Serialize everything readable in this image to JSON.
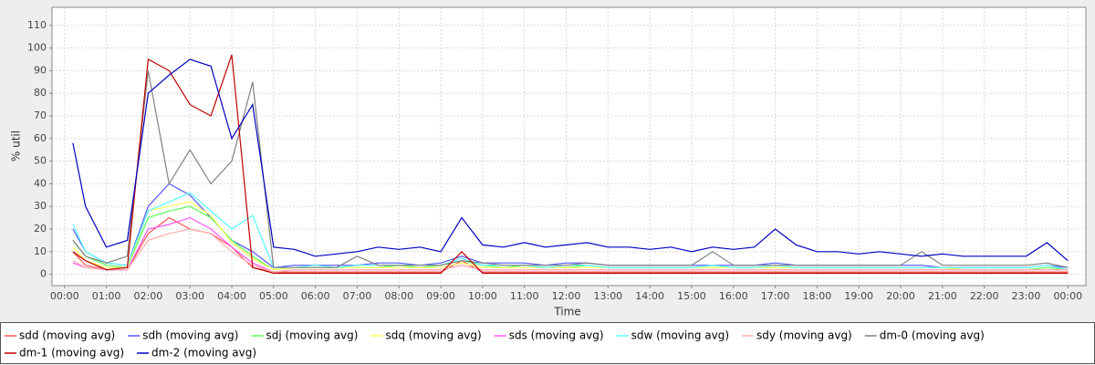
{
  "chart_data": {
    "type": "line",
    "y_label": "% util",
    "x_label": "Time",
    "xlim": [
      -0.3,
      24.43
    ],
    "ylim": [
      -5,
      118
    ],
    "yticks": [
      0,
      10,
      20,
      30,
      40,
      50,
      60,
      70,
      80,
      90,
      100,
      110
    ],
    "xticks": [
      {
        "value": 0,
        "label": "00:00"
      },
      {
        "value": 1,
        "label": "01:00"
      },
      {
        "value": 2,
        "label": "02:00"
      },
      {
        "value": 3,
        "label": "03:00"
      },
      {
        "value": 4,
        "label": "04:00"
      },
      {
        "value": 5,
        "label": "05:00"
      },
      {
        "value": 6,
        "label": "06:00"
      },
      {
        "value": 7,
        "label": "07:00"
      },
      {
        "value": 8,
        "label": "08:00"
      },
      {
        "value": 9,
        "label": "09:00"
      },
      {
        "value": 10,
        "label": "10:00"
      },
      {
        "value": 11,
        "label": "11:00"
      },
      {
        "value": 12,
        "label": "12:00"
      },
      {
        "value": 13,
        "label": "13:00"
      },
      {
        "value": 14,
        "label": "14:00"
      },
      {
        "value": 15,
        "label": "15:00"
      },
      {
        "value": 16,
        "label": "16:00"
      },
      {
        "value": 17,
        "label": "17:00"
      },
      {
        "value": 18,
        "label": "18:00"
      },
      {
        "value": 19,
        "label": "19:00"
      },
      {
        "value": 20,
        "label": "20:00"
      },
      {
        "value": 21,
        "label": "21:00"
      },
      {
        "value": 22,
        "label": "22:00"
      },
      {
        "value": 23,
        "label": "23:00"
      },
      {
        "value": 24,
        "label": "00:00"
      }
    ],
    "grid": true,
    "legend": "bottom",
    "x": [
      0.2,
      0.5,
      1,
      1.5,
      2,
      2.5,
      3,
      3.5,
      4,
      4.5,
      5,
      5.5,
      6,
      6.5,
      7,
      7.5,
      8,
      8.5,
      9,
      9.5,
      10,
      10.5,
      11,
      11.5,
      12,
      12.5,
      13,
      13.5,
      14,
      14.5,
      15,
      15.5,
      16,
      16.5,
      17,
      17.5,
      18,
      18.5,
      19,
      19.5,
      20,
      20.5,
      21,
      21.5,
      22,
      22.5,
      23,
      23.5,
      24
    ],
    "series": [
      {
        "name": "sdd (moving avg)",
        "color": "#ff5555",
        "values": [
          10,
          4,
          2,
          2,
          18,
          25,
          20,
          18,
          12,
          3,
          1,
          1,
          1,
          1,
          1,
          1,
          1,
          1,
          1,
          6,
          1,
          1,
          1,
          1,
          1,
          1,
          1,
          1,
          1,
          1,
          1,
          1,
          1,
          1,
          1,
          1,
          1,
          1,
          1,
          1,
          1,
          1,
          1,
          1,
          1,
          1,
          1,
          1,
          1
        ]
      },
      {
        "name": "sdh (moving avg)",
        "color": "#5555ff",
        "values": [
          20,
          10,
          5,
          4,
          30,
          40,
          35,
          25,
          15,
          10,
          3,
          4,
          4,
          4,
          4,
          5,
          5,
          4,
          5,
          8,
          5,
          5,
          5,
          4,
          5,
          5,
          4,
          4,
          4,
          4,
          4,
          4,
          4,
          4,
          5,
          4,
          4,
          4,
          4,
          4,
          4,
          4,
          3,
          3,
          3,
          3,
          3,
          4,
          3
        ]
      },
      {
        "name": "sdj (moving avg)",
        "color": "#55ff55",
        "values": [
          15,
          8,
          4,
          3,
          25,
          28,
          30,
          25,
          15,
          8,
          2,
          3,
          3,
          3,
          3,
          3,
          4,
          3,
          4,
          6,
          4,
          3,
          4,
          3,
          3,
          4,
          3,
          3,
          3,
          3,
          3,
          3,
          3,
          3,
          3,
          3,
          3,
          3,
          3,
          3,
          3,
          3,
          3,
          2,
          2,
          2,
          2,
          3,
          2
        ]
      },
      {
        "name": "sdq (moving avg)",
        "color": "#ffff55",
        "values": [
          12,
          6,
          3,
          3,
          28,
          30,
          32,
          26,
          14,
          7,
          2,
          3,
          3,
          3,
          3,
          3,
          3,
          3,
          3,
          5,
          3,
          3,
          3,
          3,
          3,
          3,
          3,
          3,
          3,
          3,
          3,
          3,
          3,
          3,
          3,
          3,
          3,
          3,
          3,
          3,
          3,
          3,
          3,
          2,
          2,
          2,
          2,
          2,
          2
        ]
      },
      {
        "name": "sds (moving avg)",
        "color": "#ff55ff",
        "values": [
          5,
          3,
          2,
          2,
          20,
          22,
          25,
          20,
          12,
          5,
          1,
          2,
          2,
          2,
          2,
          2,
          2,
          2,
          2,
          4,
          2,
          2,
          2,
          2,
          2,
          2,
          2,
          2,
          2,
          2,
          2,
          2,
          2,
          2,
          2,
          2,
          2,
          2,
          2,
          2,
          2,
          2,
          2,
          2,
          2,
          2,
          2,
          2,
          2
        ]
      },
      {
        "name": "sdw (moving avg)",
        "color": "#55ffff",
        "values": [
          22,
          10,
          5,
          4,
          28,
          32,
          36,
          28,
          20,
          26,
          3,
          3,
          4,
          3,
          4,
          4,
          4,
          4,
          4,
          7,
          4,
          4,
          4,
          3,
          4,
          4,
          3,
          3,
          3,
          3,
          3,
          4,
          3,
          3,
          4,
          3,
          3,
          3,
          3,
          3,
          3,
          3,
          3,
          3,
          3,
          3,
          3,
          4,
          2
        ]
      },
      {
        "name": "sdy (moving avg)",
        "color": "#ffafaf",
        "values": [
          6,
          3,
          2,
          2,
          15,
          18,
          20,
          18,
          10,
          4,
          1,
          2,
          2,
          2,
          2,
          2,
          2,
          2,
          2,
          4,
          2,
          2,
          2,
          2,
          2,
          2,
          2,
          2,
          2,
          2,
          2,
          2,
          2,
          2,
          2,
          2,
          2,
          2,
          2,
          2,
          2,
          2,
          2,
          2,
          2,
          2,
          2,
          2,
          2
        ]
      },
      {
        "name": "dm-0 (moving avg)",
        "color": "#808080",
        "values": [
          15,
          8,
          5,
          8,
          90,
          40,
          55,
          40,
          50,
          85,
          3,
          3,
          3,
          3,
          8,
          4,
          4,
          4,
          4,
          6,
          5,
          4,
          4,
          4,
          4,
          5,
          4,
          4,
          4,
          4,
          4,
          10,
          4,
          4,
          4,
          4,
          4,
          4,
          4,
          4,
          4,
          10,
          4,
          4,
          4,
          4,
          4,
          5,
          3
        ]
      },
      {
        "name": "dm-1 (moving avg)",
        "color": "#c00000",
        "values": [
          10,
          6,
          2,
          3,
          95,
          90,
          75,
          70,
          97,
          3,
          0.5,
          0.5,
          0.5,
          0.5,
          0.5,
          0.5,
          0.5,
          0.5,
          0.5,
          10,
          0.5,
          0.5,
          0.5,
          0.5,
          0.5,
          0.5,
          0.5,
          0.5,
          0.5,
          0.5,
          0.5,
          0.5,
          0.5,
          0.5,
          0.5,
          0.5,
          0.5,
          0.5,
          0.5,
          0.5,
          0.5,
          0.5,
          0.5,
          0.5,
          0.5,
          0.5,
          0.5,
          0.5,
          0.5
        ]
      },
      {
        "name": "dm-2 (moving avg)",
        "color": "#0000c0",
        "values": [
          58,
          30,
          12,
          15,
          80,
          88,
          95,
          92,
          60,
          75,
          12,
          11,
          8,
          9,
          10,
          12,
          11,
          12,
          10,
          25,
          13,
          12,
          14,
          12,
          13,
          14,
          12,
          12,
          11,
          12,
          10,
          12,
          11,
          12,
          20,
          13,
          10,
          10,
          9,
          10,
          9,
          8,
          9,
          8,
          8,
          8,
          8,
          14,
          6
        ]
      }
    ]
  }
}
